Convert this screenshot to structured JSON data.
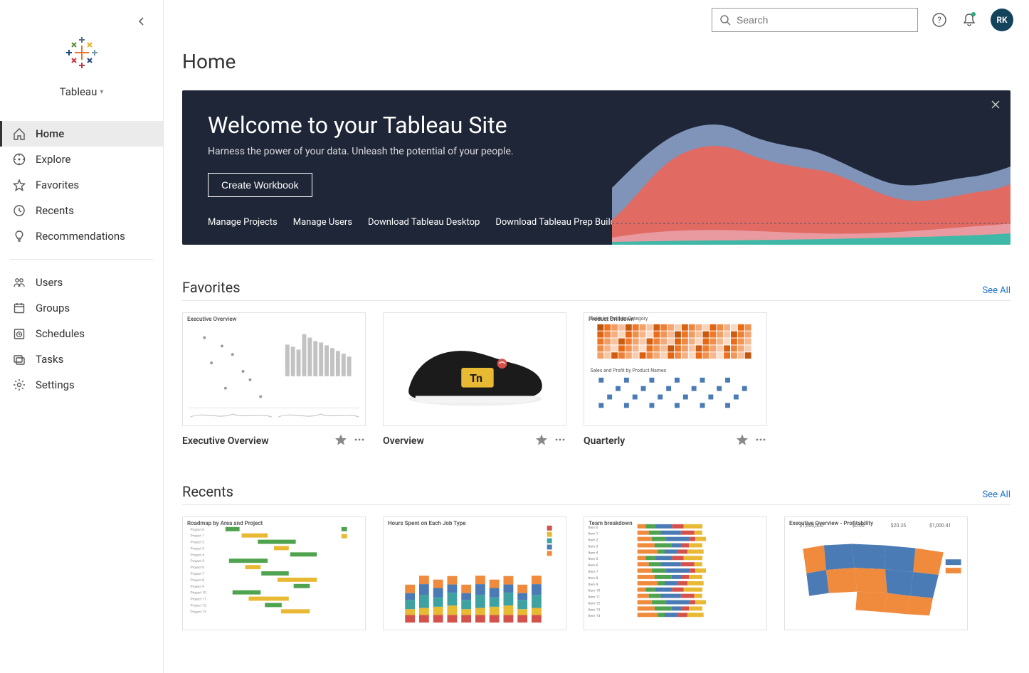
{
  "site_name": "Tableau",
  "sidebar": {
    "primary": [
      {
        "label": "Home",
        "icon": "home-icon",
        "active": true
      },
      {
        "label": "Explore",
        "icon": "compass-icon",
        "active": false
      },
      {
        "label": "Favorites",
        "icon": "star-outline-icon",
        "active": false
      },
      {
        "label": "Recents",
        "icon": "clock-icon",
        "active": false
      },
      {
        "label": "Recommendations",
        "icon": "lightbulb-icon",
        "active": false
      }
    ],
    "admin": [
      {
        "label": "Users",
        "icon": "users-icon"
      },
      {
        "label": "Groups",
        "icon": "calendar-icon"
      },
      {
        "label": "Schedules",
        "icon": "schedule-icon"
      },
      {
        "label": "Tasks",
        "icon": "tasks-icon"
      },
      {
        "label": "Settings",
        "icon": "gear-icon"
      }
    ]
  },
  "search_placeholder": "Search",
  "avatar_initials": "RK",
  "page_title": "Home",
  "banner": {
    "title": "Welcome to your Tableau Site",
    "subtitle": "Harness the power of your data. Unleash the potential of your people.",
    "cta_label": "Create Workbook",
    "links": [
      "Manage Projects",
      "Manage Users",
      "Download Tableau Desktop",
      "Download Tableau Prep Builder"
    ],
    "chart_colors": {
      "blue": "#7f94b8",
      "red": "#e16a63",
      "pink": "#e99aa0",
      "teal": "#3fb8a8"
    }
  },
  "sections": {
    "favorites": {
      "title": "Favorites",
      "see_all": "See All",
      "cards": [
        {
          "title": "Executive Overview",
          "thumb_label": "Executive Overview",
          "thumb": "scatter-bars"
        },
        {
          "title": "Overview",
          "thumb_label": "",
          "thumb": "shoe"
        },
        {
          "title": "Quarterly",
          "thumb_label": "Product Drilldown",
          "thumb": "heatmap"
        }
      ]
    },
    "recents": {
      "title": "Recents",
      "see_all": "See All",
      "cards": [
        {
          "title": "",
          "thumb_label": "Roadmap by Area and Project",
          "thumb": "gantt"
        },
        {
          "title": "",
          "thumb_label": "Hours Spent on Each Job Type",
          "thumb": "stacked-bars"
        },
        {
          "title": "",
          "thumb_label": "Team breakdown",
          "thumb": "hbars"
        },
        {
          "title": "",
          "thumb_label": "Executive Overview - Profitability",
          "thumb": "us-map"
        }
      ]
    }
  },
  "colors": {
    "accent_blue": "#1a73c9",
    "sidebar_active_bg": "#ebebeb",
    "avatar_bg": "#14435c",
    "banner_bg": "#1f2637",
    "border": "#e5e5e5",
    "thumb_orange": "#f08a3c",
    "thumb_green": "#4fa34f",
    "thumb_teal": "#3fa2a2",
    "thumb_red": "#d5524c",
    "thumb_yellow": "#e8b933",
    "thumb_blue": "#4a7bb5",
    "thumb_gray": "#c2c2c2"
  }
}
